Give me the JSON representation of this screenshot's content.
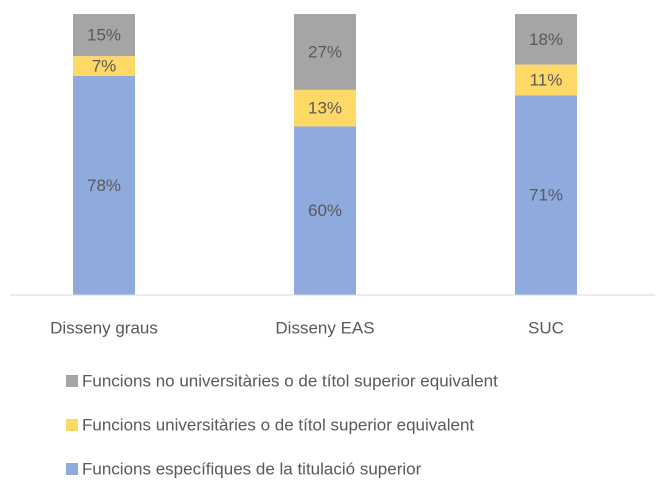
{
  "chart_data": {
    "type": "stacked_bar",
    "categories": [
      "Disseny graus",
      "Disseny EAS",
      "SUC"
    ],
    "series": [
      {
        "name": "Funcions específiques de la titulació superior",
        "color": "#8faadc",
        "values": [
          78,
          60,
          71
        ],
        "value_labels": [
          "78%",
          "60%",
          "71%"
        ]
      },
      {
        "name": "Funcions universitàries o de títol superior equivalent",
        "color": "#ffd966",
        "values": [
          7,
          13,
          11
        ],
        "value_labels": [
          "7%",
          "13%",
          "11%"
        ]
      },
      {
        "name": "Funcions no universitàries o de títol superior equivalent",
        "color": "#a5a5a5",
        "values": [
          15,
          27,
          18
        ],
        "value_labels": [
          "15%",
          "27%",
          "18%"
        ]
      }
    ]
  }
}
